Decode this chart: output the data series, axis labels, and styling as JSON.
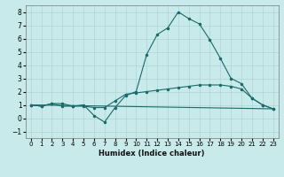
{
  "xlabel": "Humidex (Indice chaleur)",
  "xlim": [
    -0.5,
    23.5
  ],
  "ylim": [
    -1.5,
    8.5
  ],
  "xticks": [
    0,
    1,
    2,
    3,
    4,
    5,
    6,
    7,
    8,
    9,
    10,
    11,
    12,
    13,
    14,
    15,
    16,
    17,
    18,
    19,
    20,
    21,
    22,
    23
  ],
  "yticks": [
    -1,
    0,
    1,
    2,
    3,
    4,
    5,
    6,
    7,
    8
  ],
  "bg_color": "#c8eaea",
  "grid_color": "#b0d4d4",
  "line_color": "#1a6b6b",
  "line1_x": [
    0,
    1,
    2,
    3,
    4,
    5,
    6,
    7,
    8,
    9,
    10,
    11,
    12,
    13,
    14,
    15,
    16,
    17,
    18,
    19,
    20,
    21,
    22,
    23
  ],
  "line1_y": [
    1.0,
    0.9,
    1.1,
    0.9,
    0.9,
    1.0,
    0.2,
    -0.3,
    0.8,
    1.7,
    2.0,
    4.8,
    6.3,
    6.8,
    8.0,
    7.5,
    7.1,
    5.9,
    4.5,
    3.0,
    2.6,
    1.5,
    1.0,
    0.7
  ],
  "line2_x": [
    0,
    1,
    2,
    3,
    4,
    5,
    6,
    7,
    8,
    9,
    10,
    11,
    12,
    13,
    14,
    15,
    16,
    17,
    18,
    19,
    20,
    21,
    22,
    23
  ],
  "line2_y": [
    1.0,
    0.9,
    1.1,
    1.1,
    0.9,
    0.9,
    0.8,
    0.8,
    1.3,
    1.8,
    1.9,
    2.0,
    2.1,
    2.2,
    2.3,
    2.4,
    2.5,
    2.5,
    2.5,
    2.4,
    2.2,
    1.5,
    1.0,
    0.7
  ],
  "line3_x": [
    0,
    23
  ],
  "line3_y": [
    1.0,
    0.7
  ],
  "label_fontsize": 5.0,
  "xlabel_fontsize": 6.0
}
